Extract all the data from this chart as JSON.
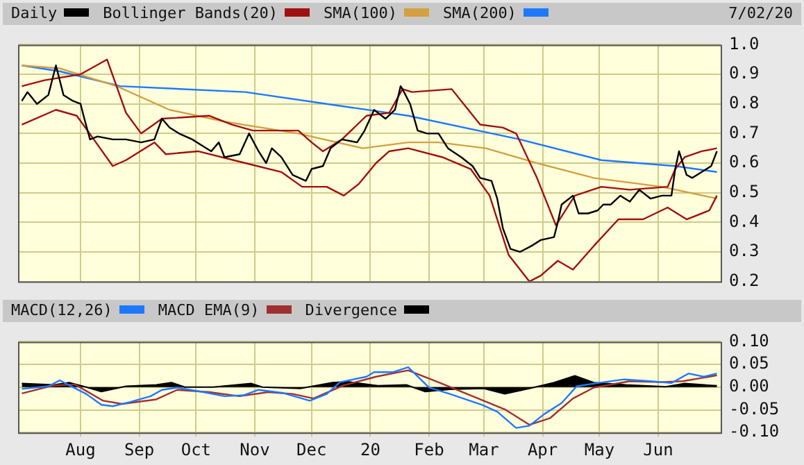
{
  "chart_data": [
    {
      "type": "line",
      "legend": "top",
      "grid": true,
      "tick_labels": "y",
      "marker": "none",
      "line_style": "solid",
      "annotations": [
        "7/02/20"
      ],
      "xlim": [
        "2019-06-29",
        "2020-07-04"
      ],
      "xticks": [
        {
          "value": "2019-08-01",
          "label": null
        },
        {
          "value": "2019-09-01",
          "label": null
        },
        {
          "value": "2019-10-01",
          "label": null
        },
        {
          "value": "2019-11-01",
          "label": null
        },
        {
          "value": "2019-12-01",
          "label": null
        },
        {
          "value": "2020-01-01",
          "label": null
        },
        {
          "value": "2020-02-01",
          "label": null
        },
        {
          "value": "2020-03-01",
          "label": null
        },
        {
          "value": "2020-04-01",
          "label": null
        },
        {
          "value": "2020-05-01",
          "label": null
        },
        {
          "value": "2020-06-01",
          "label": null
        }
      ],
      "ylim": [
        0.2,
        1.0
      ],
      "yticks": [
        {
          "value": 0.2,
          "label": "0.2"
        },
        {
          "value": 0.3,
          "label": "0.3"
        },
        {
          "value": 0.4,
          "label": "0.4"
        },
        {
          "value": 0.5,
          "label": "0.5"
        },
        {
          "value": 0.6,
          "label": "0.6"
        },
        {
          "value": 0.7,
          "label": "0.7"
        },
        {
          "value": 0.8,
          "label": "0.8"
        },
        {
          "value": 0.9,
          "label": "0.9"
        },
        {
          "value": 1.0,
          "label": "1.0"
        }
      ],
      "series": [
        {
          "name": "Daily",
          "type": "line",
          "color": "#000000",
          "x": [
            "2019-07-01",
            "2019-07-04",
            "2019-07-09",
            "2019-07-15",
            "2019-07-19",
            "2019-07-23",
            "2019-07-28",
            "2019-08-01",
            "2019-08-03",
            "2019-08-06",
            "2019-08-10",
            "2019-08-18",
            "2019-08-25",
            "2019-09-02",
            "2019-09-09",
            "2019-09-13",
            "2019-09-17",
            "2019-09-22",
            "2019-09-29",
            "2019-10-04",
            "2019-10-09",
            "2019-10-13",
            "2019-10-16",
            "2019-10-24",
            "2019-10-29",
            "2019-11-03",
            "2019-11-07",
            "2019-11-10",
            "2019-11-15",
            "2019-11-21",
            "2019-11-28",
            "2019-12-01",
            "2019-12-07",
            "2019-12-11",
            "2019-12-17",
            "2019-12-25",
            "2019-12-29",
            "2020-01-03",
            "2020-01-09",
            "2020-01-14",
            "2020-01-17",
            "2020-01-18",
            "2020-01-22",
            "2020-01-26",
            "2020-01-31",
            "2020-02-06",
            "2020-02-11",
            "2020-02-18",
            "2020-02-24",
            "2020-02-28",
            "2020-03-05",
            "2020-03-08",
            "2020-03-11",
            "2020-03-15",
            "2020-03-20",
            "2020-03-26",
            "2020-03-31",
            "2020-04-07",
            "2020-04-09",
            "2020-04-11",
            "2020-04-17",
            "2020-04-20",
            "2020-04-25",
            "2020-04-30",
            "2020-05-03",
            "2020-05-07",
            "2020-05-12",
            "2020-05-17",
            "2020-05-22",
            "2020-05-28",
            "2020-06-03",
            "2020-06-08",
            "2020-06-10",
            "2020-06-12",
            "2020-06-16",
            "2020-06-19",
            "2020-06-24",
            "2020-06-29",
            "2020-07-02"
          ],
          "values": [
            0.81,
            0.84,
            0.8,
            0.83,
            0.93,
            0.83,
            0.81,
            0.8,
            0.75,
            0.68,
            0.69,
            0.68,
            0.68,
            0.67,
            0.68,
            0.75,
            0.72,
            0.7,
            0.68,
            0.66,
            0.64,
            0.67,
            0.62,
            0.63,
            0.7,
            0.64,
            0.6,
            0.65,
            0.62,
            0.56,
            0.54,
            0.58,
            0.59,
            0.65,
            0.68,
            0.67,
            0.71,
            0.78,
            0.75,
            0.78,
            0.86,
            0.85,
            0.8,
            0.71,
            0.7,
            0.7,
            0.65,
            0.62,
            0.59,
            0.55,
            0.54,
            0.48,
            0.38,
            0.31,
            0.3,
            0.32,
            0.34,
            0.35,
            0.4,
            0.46,
            0.49,
            0.43,
            0.43,
            0.44,
            0.46,
            0.46,
            0.49,
            0.47,
            0.51,
            0.48,
            0.49,
            0.49,
            0.58,
            0.64,
            0.56,
            0.55,
            0.57,
            0.59,
            0.64
          ]
        },
        {
          "name": "Bollinger Bands(20)",
          "type": "line",
          "color": "#a01010",
          "x": [
            "2019-07-01",
            "2019-07-13",
            "2019-08-01",
            "2019-08-15",
            "2019-08-20",
            "2019-08-25",
            "2019-09-02",
            "2019-09-13",
            "2019-10-08",
            "2019-10-20",
            "2019-10-31",
            "2019-11-24",
            "2019-12-01",
            "2019-12-07",
            "2019-12-17",
            "2019-12-30",
            "2020-01-11",
            "2020-01-18",
            "2020-01-23",
            "2020-02-13",
            "2020-02-18",
            "2020-02-28",
            "2020-03-11",
            "2020-03-18",
            "2020-03-29",
            "2020-04-08",
            "2020-04-18",
            "2020-05-02",
            "2020-05-17",
            "2020-06-06",
            "2020-06-10",
            "2020-06-15",
            "2020-06-24",
            "2020-07-02"
          ],
          "values": [
            0.86,
            0.88,
            0.9,
            0.95,
            0.86,
            0.77,
            0.7,
            0.75,
            0.76,
            0.73,
            0.71,
            0.71,
            0.67,
            0.64,
            0.68,
            0.76,
            0.77,
            0.85,
            0.84,
            0.85,
            0.81,
            0.73,
            0.72,
            0.7,
            0.55,
            0.39,
            0.49,
            0.52,
            0.51,
            0.52,
            0.58,
            0.62,
            0.64,
            0.65
          ]
        },
        {
          "type": "line",
          "color": "#a01010",
          "x": [
            "2019-07-01",
            "2019-07-19",
            "2019-07-30",
            "2019-08-08",
            "2019-08-18",
            "2019-08-25",
            "2019-09-09",
            "2019-09-15",
            "2019-10-02",
            "2019-10-27",
            "2019-11-15",
            "2019-11-26",
            "2019-12-09",
            "2019-12-18",
            "2019-12-26",
            "2020-01-04",
            "2020-01-11",
            "2020-01-21",
            "2020-02-08",
            "2020-02-23",
            "2020-03-04",
            "2020-03-14",
            "2020-03-25",
            "2020-03-31",
            "2020-04-09",
            "2020-04-17",
            "2020-04-28",
            "2020-05-11",
            "2020-05-24",
            "2020-06-06",
            "2020-06-16",
            "2020-06-28",
            "2020-07-02"
          ],
          "values": [
            0.73,
            0.78,
            0.76,
            0.68,
            0.59,
            0.61,
            0.67,
            0.63,
            0.64,
            0.6,
            0.57,
            0.52,
            0.52,
            0.49,
            0.53,
            0.6,
            0.64,
            0.65,
            0.62,
            0.58,
            0.49,
            0.29,
            0.2,
            0.22,
            0.27,
            0.24,
            0.32,
            0.41,
            0.41,
            0.45,
            0.41,
            0.44,
            0.49
          ]
        },
        {
          "name": "SMA(100)",
          "type": "line",
          "color": "#d4a040",
          "x": [
            "2019-07-01",
            "2019-07-21",
            "2019-08-20",
            "2019-09-17",
            "2019-10-16",
            "2019-11-24",
            "2019-12-28",
            "2020-01-21",
            "2020-02-06",
            "2020-03-02",
            "2020-03-29",
            "2020-04-28",
            "2020-06-03",
            "2020-07-02"
          ],
          "values": [
            0.93,
            0.92,
            0.86,
            0.78,
            0.74,
            0.7,
            0.65,
            0.67,
            0.67,
            0.65,
            0.6,
            0.55,
            0.52,
            0.48
          ]
        },
        {
          "name": "SMA(200)",
          "type": "line",
          "color": "#1e78ff",
          "x": [
            "2019-07-01",
            "2019-07-21",
            "2019-08-22",
            "2019-10-27",
            "2019-12-09",
            "2020-01-21",
            "2020-03-20",
            "2020-05-02",
            "2020-06-10",
            "2020-07-02"
          ],
          "values": [
            0.93,
            0.91,
            0.86,
            0.84,
            0.8,
            0.76,
            0.68,
            0.61,
            0.59,
            0.57
          ]
        }
      ]
    },
    {
      "type": "line",
      "legend": "top",
      "grid": true,
      "marker": "none",
      "line_style": "solid",
      "xlim": [
        "2019-06-29",
        "2020-07-04"
      ],
      "xticks": [
        {
          "value": "2019-08-01",
          "label": "Aug"
        },
        {
          "value": "2019-09-01",
          "label": "Sep"
        },
        {
          "value": "2019-10-01",
          "label": "Oct"
        },
        {
          "value": "2019-11-01",
          "label": "Nov"
        },
        {
          "value": "2019-12-01",
          "label": "Dec"
        },
        {
          "value": "2020-01-01",
          "label": "20"
        },
        {
          "value": "2020-02-01",
          "label": "Feb"
        },
        {
          "value": "2020-03-01",
          "label": "Mar"
        },
        {
          "value": "2020-04-01",
          "label": "Apr"
        },
        {
          "value": "2020-05-01",
          "label": "May"
        },
        {
          "value": "2020-06-01",
          "label": "Jun"
        }
      ],
      "ylim": [
        -0.1,
        0.1
      ],
      "yticks": [
        {
          "value": -0.1,
          "label": "-0.10"
        },
        {
          "value": -0.05,
          "label": "-0.05"
        },
        {
          "value": 0,
          "label": "0.00"
        },
        {
          "value": 0.05,
          "label": "0.05"
        },
        {
          "value": 0.1,
          "label": "0.10"
        }
      ],
      "series": [
        {
          "name": "MACD(12,26)",
          "type": "line",
          "color": "#1e78ff",
          "x": [
            "2019-07-01",
            "2019-07-15",
            "2019-07-21",
            "2019-07-26",
            "2019-08-04",
            "2019-08-12",
            "2019-08-18",
            "2019-08-27",
            "2019-09-07",
            "2019-09-13",
            "2019-09-21",
            "2019-10-05",
            "2019-10-16",
            "2019-10-26",
            "2019-11-03",
            "2019-11-16",
            "2019-11-30",
            "2019-12-09",
            "2019-12-16",
            "2019-12-30",
            "2020-01-03",
            "2020-01-13",
            "2020-01-21",
            "2020-02-01",
            "2020-02-12",
            "2020-02-29",
            "2020-03-08",
            "2020-03-18",
            "2020-03-25",
            "2020-04-02",
            "2020-04-11",
            "2020-04-19",
            "2020-04-30",
            "2020-05-14",
            "2020-05-28",
            "2020-06-08",
            "2020-06-17",
            "2020-06-25",
            "2020-07-02"
          ],
          "values": [
            -0.004,
            0.002,
            0.015,
            0.004,
            -0.015,
            -0.039,
            -0.042,
            -0.033,
            -0.02,
            -0.006,
            -0.001,
            -0.011,
            -0.02,
            -0.018,
            -0.006,
            -0.013,
            -0.03,
            -0.015,
            0.011,
            0.023,
            0.033,
            0.033,
            0.044,
            -0.001,
            -0.015,
            -0.039,
            -0.054,
            -0.09,
            -0.085,
            -0.059,
            -0.035,
            0.002,
            0.009,
            0.017,
            0.013,
            0.009,
            0.03,
            0.023,
            0.03
          ]
        },
        {
          "name": "MACD EMA(9)",
          "type": "line",
          "color": "#a03030",
          "x": [
            "2019-07-01",
            "2019-07-18",
            "2019-07-29",
            "2019-08-13",
            "2019-08-23",
            "2019-09-10",
            "2019-09-21",
            "2019-10-08",
            "2019-10-24",
            "2019-11-08",
            "2019-11-21",
            "2019-12-02",
            "2019-12-18",
            "2020-01-04",
            "2020-01-21",
            "2020-02-07",
            "2020-02-24",
            "2020-03-12",
            "2020-03-25",
            "2020-04-05",
            "2020-04-17",
            "2020-04-28",
            "2020-05-17",
            "2020-06-02",
            "2020-06-14",
            "2020-06-28",
            "2020-07-02"
          ],
          "values": [
            -0.014,
            0.004,
            0.006,
            -0.03,
            -0.037,
            -0.027,
            -0.006,
            -0.011,
            -0.02,
            -0.011,
            -0.015,
            -0.025,
            0.004,
            0.023,
            0.037,
            0.009,
            -0.02,
            -0.049,
            -0.083,
            -0.068,
            -0.025,
            -0.001,
            0.013,
            0.011,
            0.013,
            0.023,
            0.026
          ]
        },
        {
          "name": "Divergence",
          "type": "area",
          "color": "#000000",
          "x": [
            "2019-07-01",
            "2019-07-18",
            "2019-07-26",
            "2019-08-04",
            "2019-08-12",
            "2019-08-25",
            "2019-09-10",
            "2019-09-18",
            "2019-09-25",
            "2019-10-10",
            "2019-10-30",
            "2019-11-05",
            "2019-11-25",
            "2019-12-12",
            "2019-12-20",
            "2020-01-05",
            "2020-01-20",
            "2020-01-30",
            "2020-02-12",
            "2020-03-01",
            "2020-03-12",
            "2020-03-25",
            "2020-04-07",
            "2020-04-18",
            "2020-04-28",
            "2020-05-15",
            "2020-06-05",
            "2020-06-15",
            "2020-07-02"
          ],
          "values": [
            0.008,
            0.005,
            0.01,
            0.0,
            -0.01,
            0.002,
            0.005,
            0.01,
            0.0,
            0.0,
            0.008,
            0.0,
            -0.003,
            0.01,
            0.012,
            0.003,
            0.005,
            -0.01,
            -0.005,
            -0.003,
            -0.015,
            -0.003,
            0.01,
            0.025,
            0.01,
            0.005,
            0.001,
            0.008,
            0.003
          ]
        }
      ]
    }
  ]
}
